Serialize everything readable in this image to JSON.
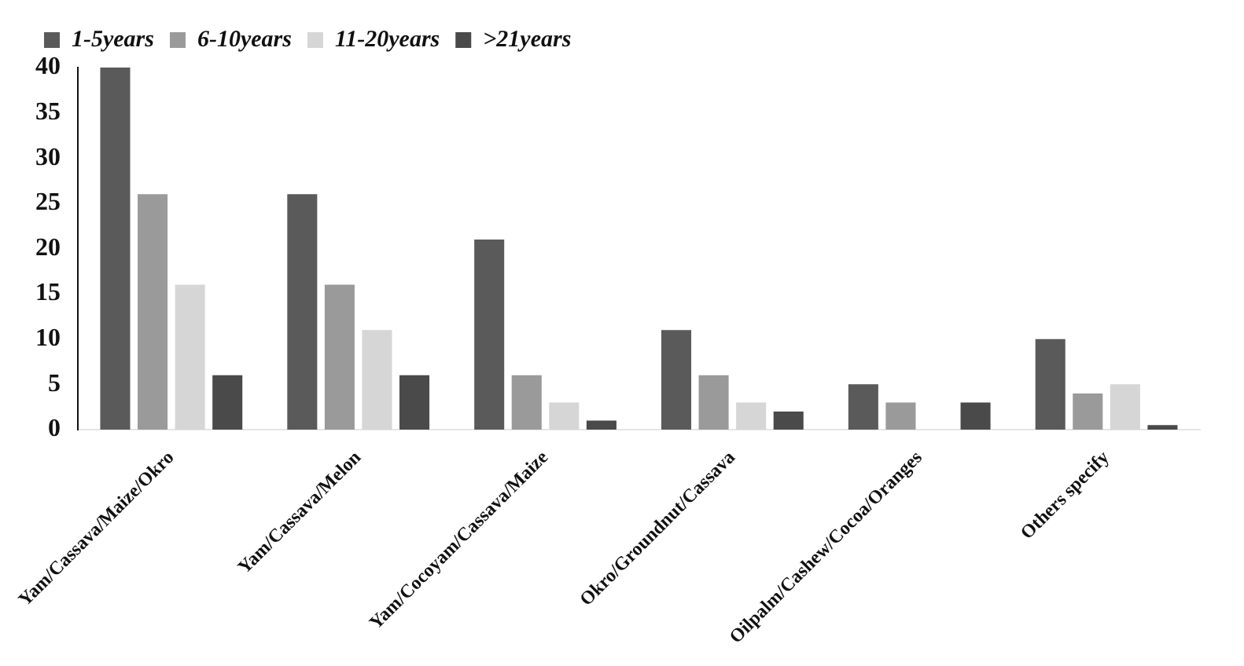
{
  "chart_data": {
    "type": "bar",
    "categories": [
      "Yam/Cassava/Maize/Okro",
      "Yam/Cassava/Melon",
      "Yam/Cocoyam/Cassava/Maize",
      "Okro/Groundnut/Cassava",
      "Oilpalm/Cashew/Cocoa/Oranges",
      "Others specify"
    ],
    "series": [
      {
        "name": "1-5years",
        "color": "#5a5a5a",
        "values": [
          40,
          26,
          21,
          11,
          5,
          10
        ]
      },
      {
        "name": "6-10years",
        "color": "#9a9a9a",
        "values": [
          26,
          16,
          6,
          6,
          3,
          4
        ]
      },
      {
        "name": "11-20years",
        "color": "#d6d6d6",
        "values": [
          16,
          11,
          3,
          3,
          0,
          5
        ]
      },
      {
        "name": ">21years",
        "color": "#4a4a4a",
        "values": [
          6,
          6,
          1,
          2,
          3,
          0.5
        ]
      }
    ],
    "ylim": [
      0,
      40
    ],
    "yticks": [
      0,
      5,
      10,
      15,
      20,
      25,
      30,
      35,
      40
    ],
    "grid": false,
    "legend": "top left"
  }
}
